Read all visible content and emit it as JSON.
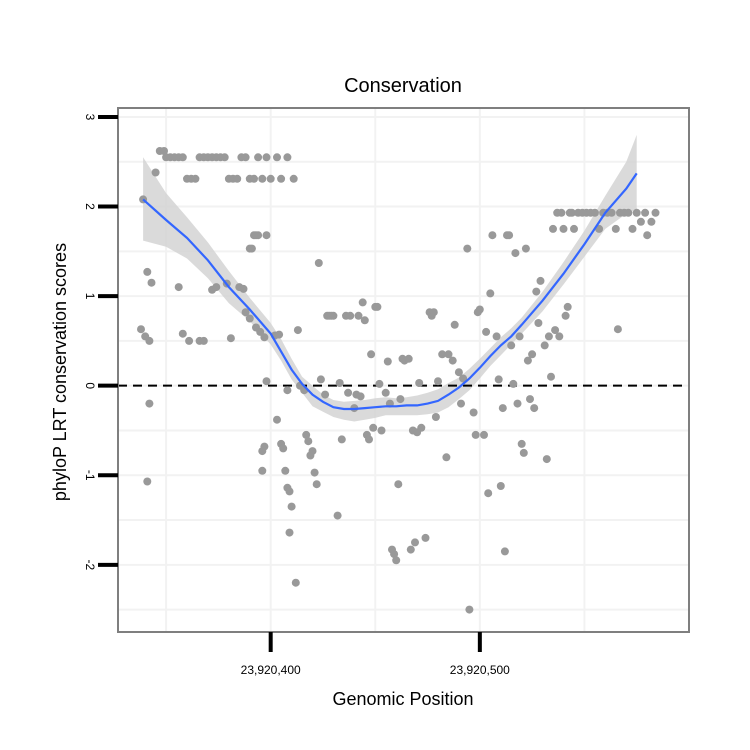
{
  "chart_data": {
    "type": "scatter",
    "title": "Conservation",
    "xlabel": "Genomic Position",
    "ylabel": "phyloP LRT conservation scores",
    "xlim": [
      23920327,
      23920600
    ],
    "ylim": [
      -2.75,
      3.1
    ],
    "x_ticks": [
      {
        "value": 23920400,
        "label": "23,920,400"
      },
      {
        "value": 23920500,
        "label": "23,920,500"
      }
    ],
    "y_ticks": [
      {
        "value": 3,
        "label": "3"
      },
      {
        "value": 2,
        "label": "2"
      },
      {
        "value": 1,
        "label": "1"
      },
      {
        "value": 0,
        "label": "0"
      },
      {
        "value": -1,
        "label": "-1"
      },
      {
        "value": -2,
        "label": "-2"
      }
    ],
    "grid": true,
    "legend": "none",
    "reference_line": {
      "y": 0,
      "style": "dashed",
      "color": "#000000"
    },
    "colors": {
      "points": "#999999",
      "smooth_line": "#3366FF",
      "confidence_band": "#D3D3D3",
      "panel_border": "#7f7f7f",
      "grid": "#f2f2f2"
    },
    "series": [
      {
        "kind": "points",
        "points": [
          [
            23920339,
            2.08
          ],
          [
            23920341,
            1.27
          ],
          [
            23920343,
            1.15
          ],
          [
            23920345,
            2.38
          ],
          [
            23920347,
            2.62
          ],
          [
            23920349,
            2.62
          ],
          [
            23920350,
            2.55
          ],
          [
            23920352,
            2.55
          ],
          [
            23920354,
            2.55
          ],
          [
            23920356,
            2.55
          ],
          [
            23920358,
            2.55
          ],
          [
            23920360,
            2.31
          ],
          [
            23920362,
            2.31
          ],
          [
            23920364,
            2.31
          ],
          [
            23920366,
            2.55
          ],
          [
            23920368,
            2.55
          ],
          [
            23920370,
            2.55
          ],
          [
            23920372,
            2.55
          ],
          [
            23920374,
            2.55
          ],
          [
            23920376,
            2.55
          ],
          [
            23920378,
            2.55
          ],
          [
            23920380,
            2.31
          ],
          [
            23920382,
            2.31
          ],
          [
            23920384,
            2.31
          ],
          [
            23920386,
            2.55
          ],
          [
            23920388,
            2.55
          ],
          [
            23920390,
            2.31
          ],
          [
            23920392,
            2.31
          ],
          [
            23920394,
            2.55
          ],
          [
            23920396,
            2.31
          ],
          [
            23920398,
            2.55
          ],
          [
            23920400,
            2.31
          ],
          [
            23920403,
            2.55
          ],
          [
            23920405,
            2.31
          ],
          [
            23920408,
            2.55
          ],
          [
            23920411,
            2.31
          ],
          [
            23920385,
            1.1
          ],
          [
            23920387,
            1.08
          ],
          [
            23920338,
            0.63
          ],
          [
            23920340,
            0.55
          ],
          [
            23920342,
            0.5
          ],
          [
            23920342,
            -0.2
          ],
          [
            23920341,
            -1.07
          ],
          [
            23920356,
            1.1
          ],
          [
            23920358,
            0.58
          ],
          [
            23920361,
            0.5
          ],
          [
            23920366,
            0.5
          ],
          [
            23920368,
            0.5
          ],
          [
            23920372,
            1.07
          ],
          [
            23920374,
            1.1
          ],
          [
            23920379,
            1.14
          ],
          [
            23920381,
            0.53
          ],
          [
            23920388,
            0.82
          ],
          [
            23920390,
            0.75
          ],
          [
            23920393,
            0.65
          ],
          [
            23920395,
            0.6
          ],
          [
            23920397,
            0.54
          ],
          [
            23920398,
            0.05
          ],
          [
            23920402,
            0.56
          ],
          [
            23920404,
            0.57
          ],
          [
            23920408,
            -0.05
          ],
          [
            23920409,
            -1.64
          ],
          [
            23920390,
            1.53
          ],
          [
            23920391,
            1.53
          ],
          [
            23920392,
            1.68
          ],
          [
            23920393,
            1.68
          ],
          [
            23920394,
            1.68
          ],
          [
            23920398,
            1.68
          ],
          [
            23920396,
            -0.73
          ],
          [
            23920397,
            -0.68
          ],
          [
            23920396,
            -0.95
          ],
          [
            23920403,
            -0.38
          ],
          [
            23920405,
            -0.65
          ],
          [
            23920406,
            -0.7
          ],
          [
            23920407,
            -0.95
          ],
          [
            23920408,
            -1.14
          ],
          [
            23920409,
            -1.18
          ],
          [
            23920410,
            -1.35
          ],
          [
            23920412,
            -2.2
          ],
          [
            23920413,
            0.62
          ],
          [
            23920414,
            0.0
          ],
          [
            23920416,
            -0.05
          ],
          [
            23920417,
            -0.55
          ],
          [
            23920418,
            -0.62
          ],
          [
            23920419,
            -0.78
          ],
          [
            23920420,
            -0.73
          ],
          [
            23920421,
            -0.97
          ],
          [
            23920422,
            -1.1
          ],
          [
            23920423,
            1.37
          ],
          [
            23920424,
            0.07
          ],
          [
            23920426,
            -0.1
          ],
          [
            23920427,
            0.78
          ],
          [
            23920428,
            0.78
          ],
          [
            23920429,
            0.78
          ],
          [
            23920430,
            0.78
          ],
          [
            23920432,
            -1.45
          ],
          [
            23920433,
            0.03
          ],
          [
            23920434,
            -0.6
          ],
          [
            23920436,
            0.78
          ],
          [
            23920437,
            -0.08
          ],
          [
            23920438,
            0.78
          ],
          [
            23920440,
            -0.25
          ],
          [
            23920441,
            -0.1
          ],
          [
            23920442,
            0.78
          ],
          [
            23920443,
            -0.12
          ],
          [
            23920444,
            0.93
          ],
          [
            23920445,
            0.73
          ],
          [
            23920446,
            -0.55
          ],
          [
            23920447,
            -0.6
          ],
          [
            23920448,
            0.35
          ],
          [
            23920449,
            -0.47
          ],
          [
            23920450,
            0.88
          ],
          [
            23920451,
            0.88
          ],
          [
            23920452,
            0.02
          ],
          [
            23920453,
            -0.5
          ],
          [
            23920455,
            -0.08
          ],
          [
            23920456,
            0.27
          ],
          [
            23920457,
            -0.2
          ],
          [
            23920458,
            -1.83
          ],
          [
            23920459,
            -1.88
          ],
          [
            23920460,
            -1.95
          ],
          [
            23920461,
            -1.1
          ],
          [
            23920462,
            -0.15
          ],
          [
            23920463,
            0.3
          ],
          [
            23920464,
            0.28
          ],
          [
            23920466,
            0.3
          ],
          [
            23920467,
            -1.83
          ],
          [
            23920468,
            -0.5
          ],
          [
            23920469,
            -1.75
          ],
          [
            23920470,
            -0.52
          ],
          [
            23920471,
            0.03
          ],
          [
            23920472,
            -0.47
          ],
          [
            23920474,
            -1.7
          ],
          [
            23920476,
            0.82
          ],
          [
            23920477,
            0.78
          ],
          [
            23920478,
            0.82
          ],
          [
            23920479,
            -0.35
          ],
          [
            23920480,
            0.05
          ],
          [
            23920482,
            0.35
          ],
          [
            23920484,
            -0.8
          ],
          [
            23920485,
            0.35
          ],
          [
            23920487,
            0.28
          ],
          [
            23920488,
            0.68
          ],
          [
            23920490,
            0.15
          ],
          [
            23920491,
            -0.2
          ],
          [
            23920492,
            0.08
          ],
          [
            23920494,
            1.53
          ],
          [
            23920495,
            -2.5
          ],
          [
            23920497,
            -0.3
          ],
          [
            23920498,
            -0.55
          ],
          [
            23920499,
            0.82
          ],
          [
            23920500,
            0.85
          ],
          [
            23920502,
            -0.55
          ],
          [
            23920503,
            0.6
          ],
          [
            23920504,
            -1.2
          ],
          [
            23920505,
            1.03
          ],
          [
            23920506,
            1.68
          ],
          [
            23920508,
            0.55
          ],
          [
            23920509,
            0.07
          ],
          [
            23920510,
            -1.12
          ],
          [
            23920511,
            -0.25
          ],
          [
            23920512,
            -1.85
          ],
          [
            23920513,
            1.68
          ],
          [
            23920514,
            1.68
          ],
          [
            23920515,
            0.45
          ],
          [
            23920516,
            0.02
          ],
          [
            23920517,
            1.48
          ],
          [
            23920518,
            -0.2
          ],
          [
            23920519,
            0.55
          ],
          [
            23920520,
            -0.65
          ],
          [
            23920521,
            -0.75
          ],
          [
            23920522,
            1.53
          ],
          [
            23920523,
            0.28
          ],
          [
            23920524,
            -0.15
          ],
          [
            23920525,
            0.35
          ],
          [
            23920526,
            -0.25
          ],
          [
            23920527,
            1.05
          ],
          [
            23920528,
            0.7
          ],
          [
            23920529,
            1.17
          ],
          [
            23920531,
            0.45
          ],
          [
            23920532,
            -0.82
          ],
          [
            23920533,
            0.55
          ],
          [
            23920534,
            0.1
          ],
          [
            23920535,
            1.75
          ],
          [
            23920536,
            0.62
          ],
          [
            23920537,
            1.93
          ],
          [
            23920538,
            0.55
          ],
          [
            23920539,
            1.93
          ],
          [
            23920540,
            1.75
          ],
          [
            23920541,
            0.78
          ],
          [
            23920542,
            0.88
          ],
          [
            23920543,
            1.93
          ],
          [
            23920544,
            1.93
          ],
          [
            23920545,
            1.75
          ],
          [
            23920547,
            1.93
          ],
          [
            23920549,
            1.93
          ],
          [
            23920551,
            1.93
          ],
          [
            23920553,
            1.93
          ],
          [
            23920555,
            1.93
          ],
          [
            23920557,
            1.75
          ],
          [
            23920559,
            1.93
          ],
          [
            23920561,
            1.93
          ],
          [
            23920563,
            1.93
          ],
          [
            23920565,
            1.75
          ],
          [
            23920566,
            0.63
          ],
          [
            23920567,
            1.93
          ],
          [
            23920569,
            1.93
          ],
          [
            23920571,
            1.93
          ],
          [
            23920573,
            1.75
          ],
          [
            23920575,
            1.93
          ],
          [
            23920577,
            1.83
          ],
          [
            23920579,
            1.93
          ],
          [
            23920580,
            1.68
          ],
          [
            23920582,
            1.83
          ],
          [
            23920584,
            1.93
          ]
        ]
      },
      {
        "kind": "smooth",
        "points": [
          [
            23920339,
            2.08
          ],
          [
            23920350,
            1.85
          ],
          [
            23920360,
            1.65
          ],
          [
            23920370,
            1.4
          ],
          [
            23920380,
            1.1
          ],
          [
            23920390,
            0.85
          ],
          [
            23920400,
            0.58
          ],
          [
            23920405,
            0.38
          ],
          [
            23920410,
            0.18
          ],
          [
            23920415,
            0.02
          ],
          [
            23920420,
            -0.1
          ],
          [
            23920425,
            -0.18
          ],
          [
            23920430,
            -0.24
          ],
          [
            23920435,
            -0.26
          ],
          [
            23920440,
            -0.26
          ],
          [
            23920445,
            -0.25
          ],
          [
            23920450,
            -0.24
          ],
          [
            23920455,
            -0.23
          ],
          [
            23920460,
            -0.23
          ],
          [
            23920465,
            -0.22
          ],
          [
            23920470,
            -0.22
          ],
          [
            23920475,
            -0.2
          ],
          [
            23920480,
            -0.17
          ],
          [
            23920485,
            -0.1
          ],
          [
            23920490,
            -0.02
          ],
          [
            23920495,
            0.08
          ],
          [
            23920500,
            0.2
          ],
          [
            23920505,
            0.33
          ],
          [
            23920510,
            0.45
          ],
          [
            23920515,
            0.55
          ],
          [
            23920520,
            0.68
          ],
          [
            23920530,
            0.95
          ],
          [
            23920540,
            1.25
          ],
          [
            23920550,
            1.58
          ],
          [
            23920560,
            1.93
          ],
          [
            23920570,
            2.2
          ],
          [
            23920575,
            2.37
          ]
        ]
      },
      {
        "kind": "confidence_band",
        "upper": [
          2.55,
          2.15,
          1.88,
          1.6,
          1.28,
          0.98,
          0.7,
          0.52,
          0.3,
          0.1,
          0.0,
          -0.1,
          -0.16,
          -0.18,
          -0.17,
          -0.16,
          -0.14,
          -0.13,
          -0.14,
          -0.13,
          -0.11,
          -0.08,
          -0.04,
          0.03,
          0.09,
          0.19,
          0.3,
          0.42,
          0.54,
          0.64,
          0.76,
          1.05,
          1.38,
          1.73,
          2.12,
          2.5,
          2.8
        ],
        "lower": [
          1.62,
          1.55,
          1.42,
          1.2,
          0.92,
          0.72,
          0.46,
          0.28,
          0.07,
          -0.08,
          -0.23,
          -0.29,
          -0.35,
          -0.38,
          -0.4,
          -0.38,
          -0.36,
          -0.33,
          -0.33,
          -0.33,
          -0.33,
          -0.32,
          -0.3,
          -0.24,
          -0.15,
          -0.05,
          0.08,
          0.22,
          0.34,
          0.46,
          0.58,
          0.83,
          1.13,
          1.44,
          1.75,
          1.92,
          1.97
        ]
      }
    ]
  }
}
